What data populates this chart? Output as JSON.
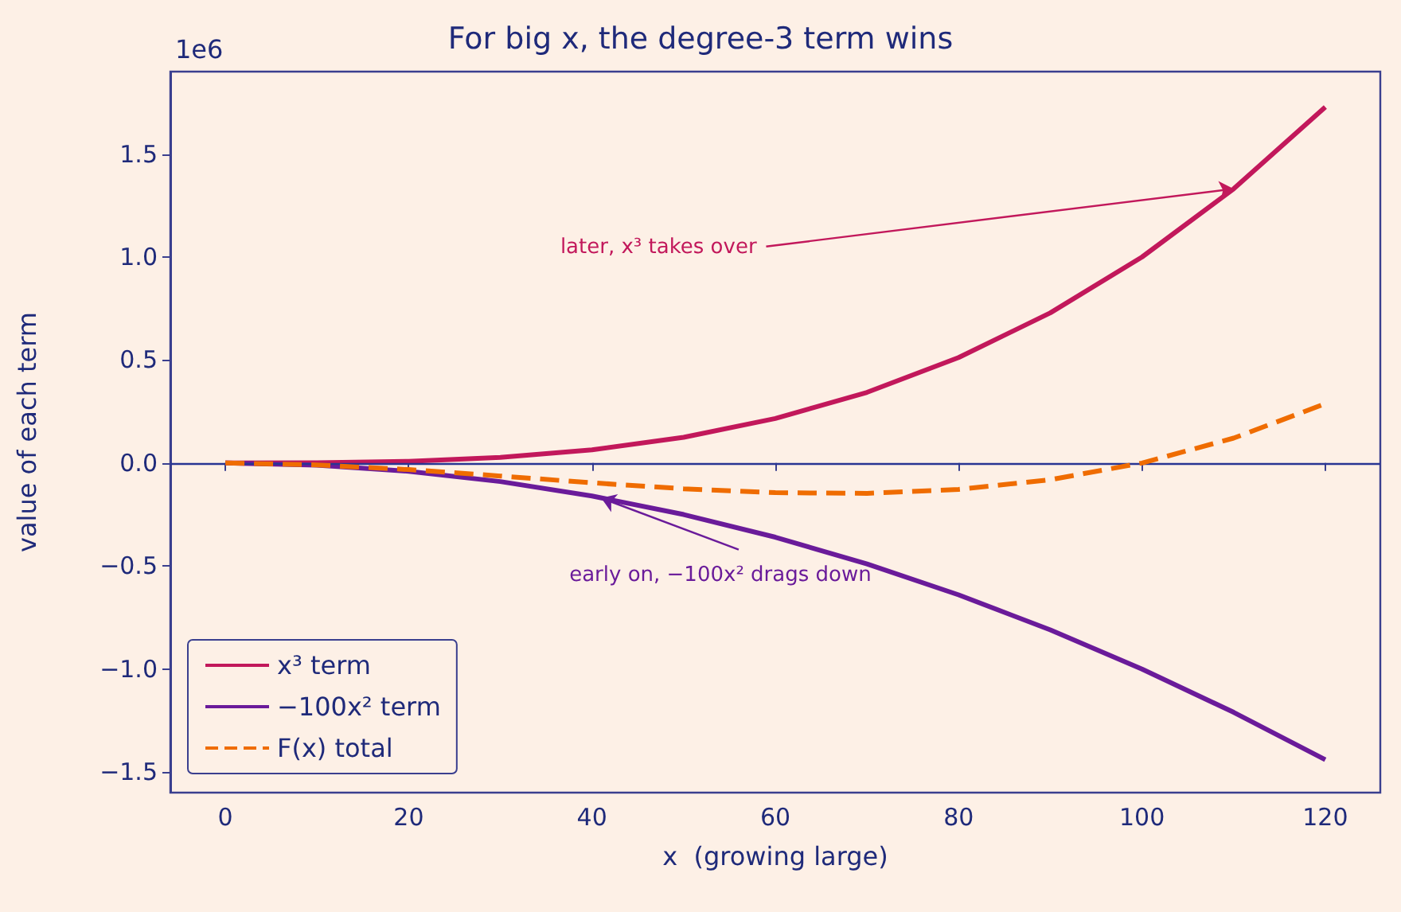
{
  "chart_data": {
    "type": "line",
    "title": "For big x, the degree-3 term wins",
    "xlabel": "x  (growing large)",
    "ylabel": "value of each term",
    "x": [
      0,
      10,
      20,
      30,
      40,
      50,
      60,
      70,
      80,
      90,
      100,
      110,
      120
    ],
    "series": [
      {
        "name": "x³ term",
        "color": "#c2185b",
        "line_style": "solid",
        "values": [
          0,
          0.001,
          0.008,
          0.027,
          0.064,
          0.125,
          0.216,
          0.343,
          0.512,
          0.729,
          1.0,
          1.331,
          1.728
        ]
      },
      {
        "name": "−100x² term",
        "color": "#6a1b9a",
        "line_style": "solid",
        "values": [
          0,
          -0.01,
          -0.04,
          -0.09,
          -0.16,
          -0.25,
          -0.36,
          -0.49,
          -0.64,
          -0.81,
          -1.0,
          -1.21,
          -1.44
        ]
      },
      {
        "name": "F(x) total",
        "color": "#ef6c00",
        "line_style": "dashed",
        "values": [
          0,
          -0.009,
          -0.032,
          -0.063,
          -0.096,
          -0.125,
          -0.144,
          -0.147,
          -0.128,
          -0.081,
          0,
          0.121,
          0.288
        ]
      }
    ],
    "xlim": [
      -6,
      126
    ],
    "xticks": [
      0,
      20,
      40,
      60,
      80,
      100,
      120
    ],
    "ylim": [
      -1.6,
      1.9
    ],
    "yticks": [
      {
        "value": -1.5,
        "label": "−1.5"
      },
      {
        "value": -1.0,
        "label": "−1.0"
      },
      {
        "value": -0.5,
        "label": "−0.5"
      },
      {
        "value": 0,
        "label": "0.0"
      },
      {
        "value": 0.5,
        "label": "0.5"
      },
      {
        "value": 1.0,
        "label": "1.0"
      },
      {
        "value": 1.5,
        "label": "1.5"
      }
    ],
    "ref_lines": [
      {
        "axis": "y",
        "value": 0,
        "label": null,
        "color": "#283593"
      }
    ],
    "annotations": [
      "1e6",
      {
        "text": "later, x³ takes over",
        "x": 110,
        "y": 1.331
      },
      {
        "text": "early on, −100x² drags down",
        "x": 41,
        "y": -0.17
      }
    ],
    "grid": false,
    "legend": "bottom left",
    "marker": "none"
  }
}
